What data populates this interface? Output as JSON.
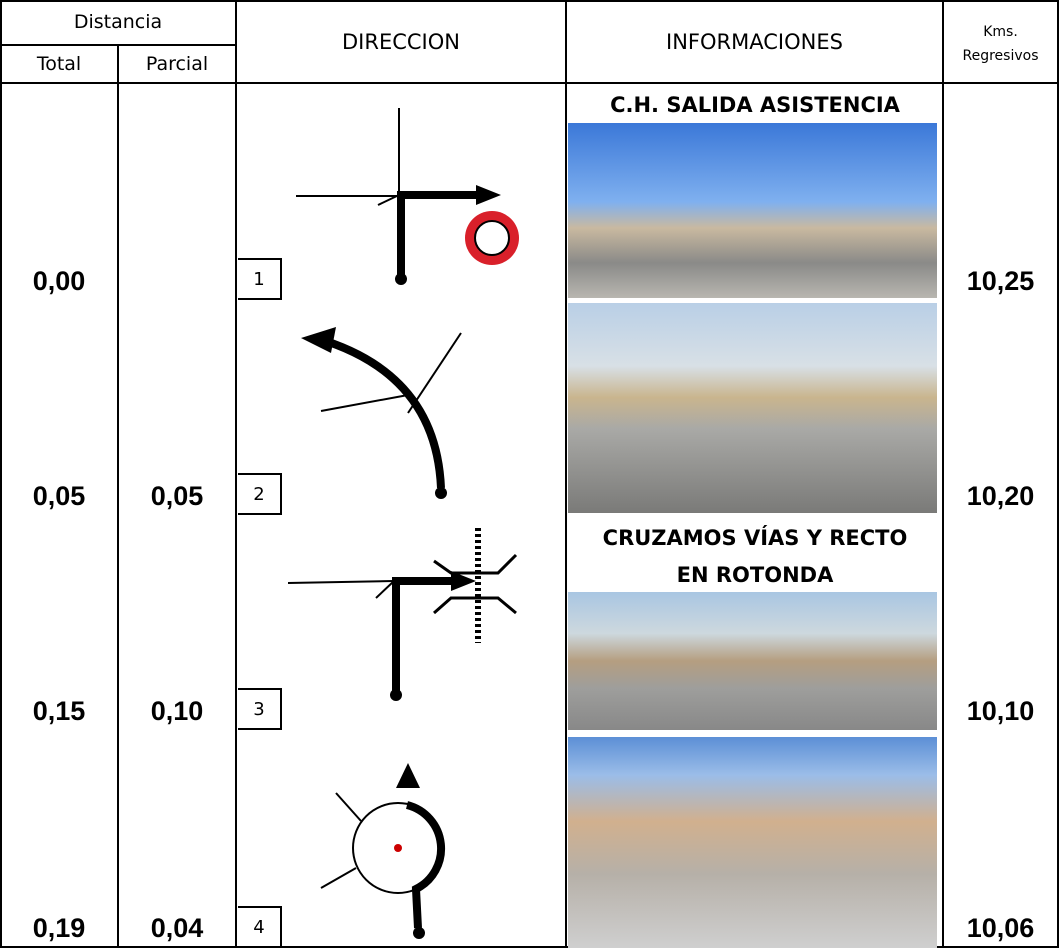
{
  "header": {
    "distance": "Distancia",
    "total": "Total",
    "partial": "Parcial",
    "direction": "DIRECCION",
    "info": "INFORMACIONES",
    "kms_line1": "Kms.",
    "kms_line2": "Regresivos"
  },
  "rows": [
    {
      "total": "0,00",
      "step": "1",
      "info_title": "C.H. SALIDA ASISTENCIA",
      "kms": "10,25"
    },
    {
      "total": "0,05",
      "partial": "0,05",
      "step": "2",
      "kms": "10,20"
    },
    {
      "total": "0,15",
      "partial": "0,10",
      "step": "3",
      "info_title": "CRUZAMOS VÍAS Y RECTO EN ROTONDA",
      "kms": "10,10"
    },
    {
      "total": "0,19",
      "partial": "0,04",
      "step": "4",
      "kms": "10,06"
    }
  ]
}
